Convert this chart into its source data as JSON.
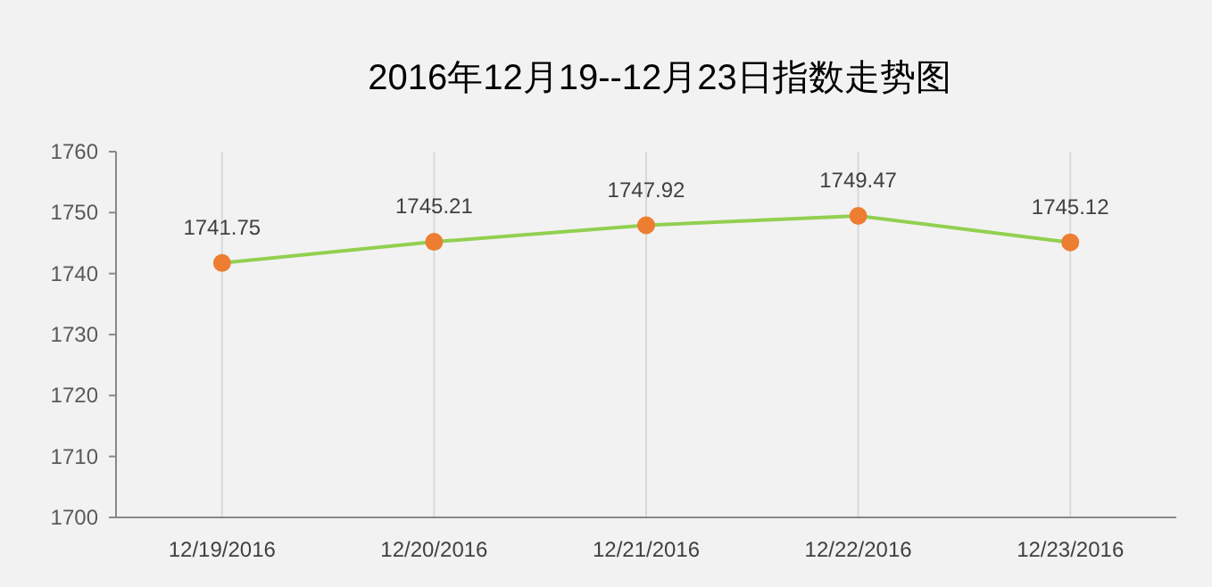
{
  "chart_data": {
    "type": "line",
    "title": "2016年12月19--12月23日指数走势图",
    "categories": [
      "12/19/2016",
      "12/20/2016",
      "12/21/2016",
      "12/22/2016",
      "12/23/2016"
    ],
    "series": [
      {
        "color": "#92d050",
        "colors": [
          "#ed7d31",
          "#ed7d31",
          "#ed7d31",
          "#ed7d31",
          "#ed7d31"
        ],
        "values": [
          1741.75,
          1745.21,
          1747.92,
          1749.47,
          1745.12
        ]
      }
    ],
    "marker": "circle",
    "ylim": [
      1700,
      1760
    ],
    "yticks": [
      1700,
      1710,
      1720,
      1730,
      1740,
      1750,
      1760
    ],
    "grid": "x",
    "data_labels": true
  }
}
